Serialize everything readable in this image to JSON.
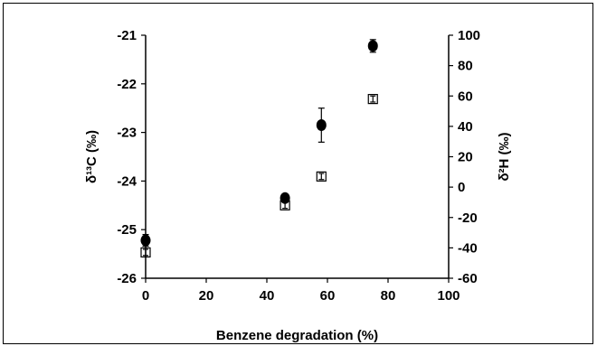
{
  "chart_data": {
    "type": "scatter",
    "title": "",
    "xlabel": "Benzene degradation (%)",
    "ylabel_left": "δ¹³C (‰)",
    "ylabel_right": "δ²H (‰)",
    "xlim": [
      0,
      100
    ],
    "ylim_left": [
      -26,
      -21
    ],
    "ylim_right": [
      -60,
      100
    ],
    "x_ticks": [
      0,
      20,
      40,
      60,
      80,
      100
    ],
    "y_ticks_left": [
      -26,
      -25,
      -24,
      -23,
      -22,
      -21
    ],
    "y_ticks_right": [
      -60,
      -40,
      -20,
      0,
      20,
      40,
      60,
      80,
      100
    ],
    "grid": false,
    "legend": "none",
    "series": [
      {
        "axis": "left",
        "marker": "filled-circle",
        "color": "#000000",
        "points": [
          {
            "x": 0,
            "y": -25.22,
            "err": 0.12
          },
          {
            "x": 46,
            "y": -24.35,
            "err": 0.07
          },
          {
            "x": 58,
            "y": -22.85,
            "err": 0.35
          },
          {
            "x": 75,
            "y": -21.22,
            "err": 0.13
          }
        ]
      },
      {
        "axis": "right",
        "marker": "open-square",
        "color": "#000000",
        "points": [
          {
            "x": 0,
            "y": -43,
            "err": 2
          },
          {
            "x": 46,
            "y": -12,
            "err": 2
          },
          {
            "x": 58,
            "y": 7,
            "err": 2
          },
          {
            "x": 75,
            "y": 58,
            "err": 2
          }
        ]
      }
    ]
  }
}
